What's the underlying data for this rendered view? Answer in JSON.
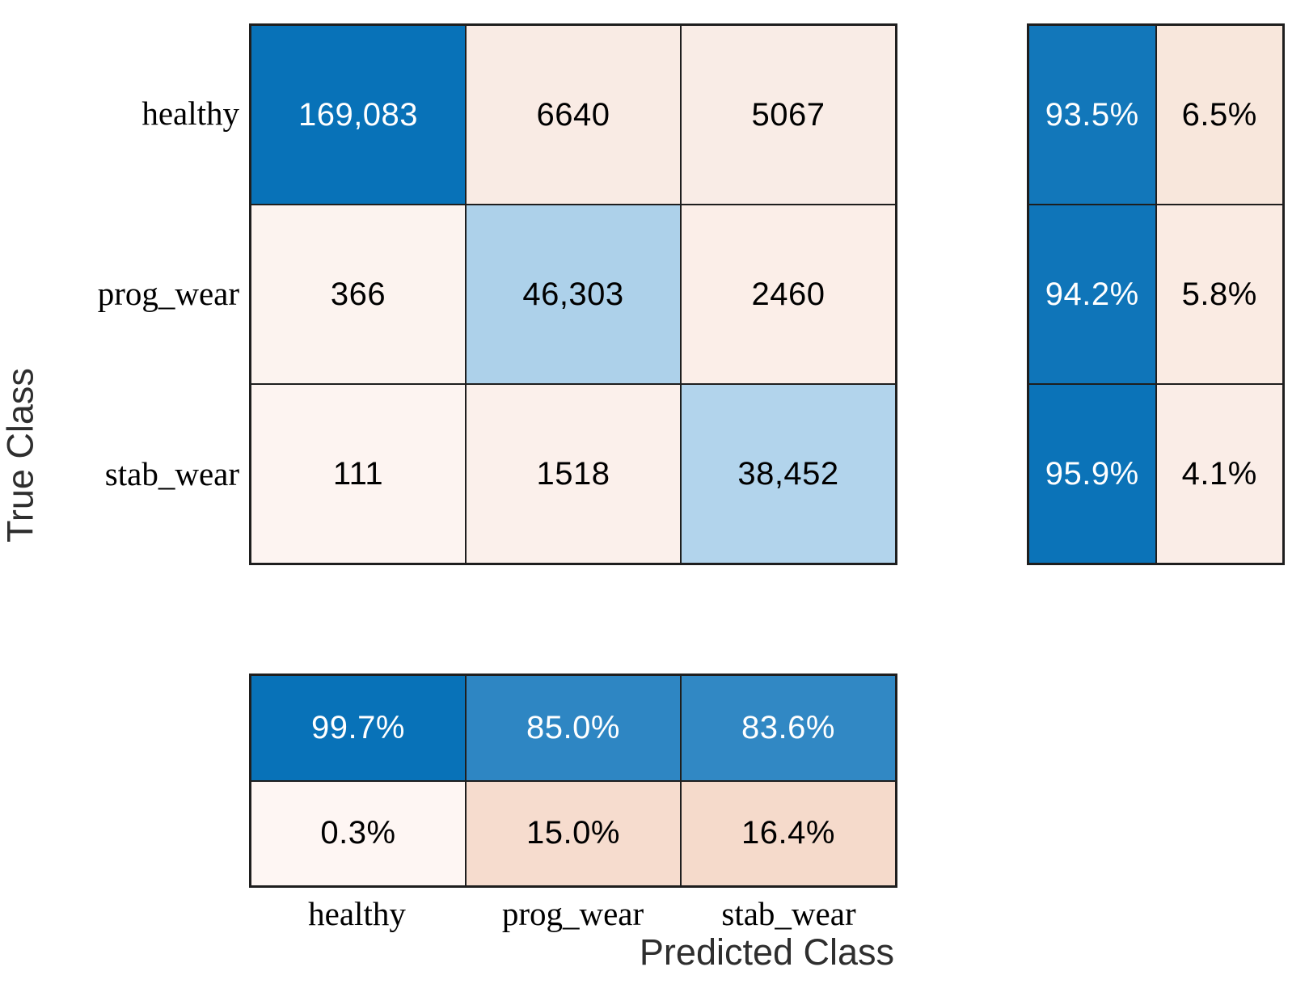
{
  "chart_data": {
    "type": "heatmap",
    "subtype": "confusion_matrix",
    "title": "",
    "xlabel": "Predicted Class",
    "ylabel": "True Class",
    "classes": [
      "healthy",
      "prog_wear",
      "stab_wear"
    ],
    "counts": [
      [
        169083,
        6640,
        5067
      ],
      [
        366,
        46303,
        2460
      ],
      [
        111,
        1518,
        38452
      ]
    ],
    "row_summary_percent": {
      "correct": [
        93.5,
        94.2,
        95.9
      ],
      "incorrect": [
        6.5,
        5.8,
        4.1
      ]
    },
    "column_summary_percent": {
      "correct": [
        99.7,
        85.0,
        83.6
      ],
      "incorrect": [
        0.3,
        15.0,
        16.4
      ]
    },
    "legend_position": "none",
    "grid": "cell-borders",
    "colors": {
      "diagonal_max": "#0872B8",
      "diagonal_light": "#ADD1EA",
      "off_diagonal_base": "#F6DCCE",
      "border": "#1E1E1E"
    }
  },
  "axes": {
    "xlabel": "Predicted Class",
    "ylabel": "True Class"
  },
  "ticks": {
    "x": [
      "healthy",
      "prog_wear",
      "stab_wear"
    ],
    "y": [
      "healthy",
      "prog_wear",
      "stab_wear"
    ]
  },
  "matrix": {
    "cells": [
      {
        "text": "169,083",
        "bg": "#0872B8",
        "fg": "#FFFFFF"
      },
      {
        "text": "6640",
        "bg": "#F9EBE4",
        "fg": "#000000"
      },
      {
        "text": "5067",
        "bg": "#F9ECE6",
        "fg": "#000000"
      },
      {
        "text": "366",
        "bg": "#FCF3EF",
        "fg": "#000000"
      },
      {
        "text": "46,303",
        "bg": "#ADD1EA",
        "fg": "#000000"
      },
      {
        "text": "2460",
        "bg": "#FBEEE8",
        "fg": "#000000"
      },
      {
        "text": "111",
        "bg": "#FDF4F1",
        "fg": "#000000"
      },
      {
        "text": "1518",
        "bg": "#FBF0EB",
        "fg": "#000000"
      },
      {
        "text": "38,452",
        "bg": "#B2D4EC",
        "fg": "#000000"
      }
    ]
  },
  "row_summary": {
    "cells": [
      {
        "text": "93.5%",
        "bg": "#1277BA",
        "fg": "#FFFFFF"
      },
      {
        "text": "6.5%",
        "bg": "#F8E7DC",
        "fg": "#000000"
      },
      {
        "text": "94.2%",
        "bg": "#0F75B9",
        "fg": "#FFFFFF"
      },
      {
        "text": "5.8%",
        "bg": "#FAEBE3",
        "fg": "#000000"
      },
      {
        "text": "95.9%",
        "bg": "#0B73B8",
        "fg": "#FFFFFF"
      },
      {
        "text": "4.1%",
        "bg": "#FAEDE7",
        "fg": "#000000"
      }
    ]
  },
  "col_summary": {
    "cells": [
      {
        "text": "99.7%",
        "bg": "#0872B8",
        "fg": "#FFFFFF"
      },
      {
        "text": "85.0%",
        "bg": "#2E86C3",
        "fg": "#FFFFFF"
      },
      {
        "text": "83.6%",
        "bg": "#3188C4",
        "fg": "#FFFFFF"
      },
      {
        "text": "0.3%",
        "bg": "#FEF6F3",
        "fg": "#000000"
      },
      {
        "text": "15.0%",
        "bg": "#F6DCCE",
        "fg": "#000000"
      },
      {
        "text": "16.4%",
        "bg": "#F5DACB",
        "fg": "#000000"
      }
    ]
  }
}
